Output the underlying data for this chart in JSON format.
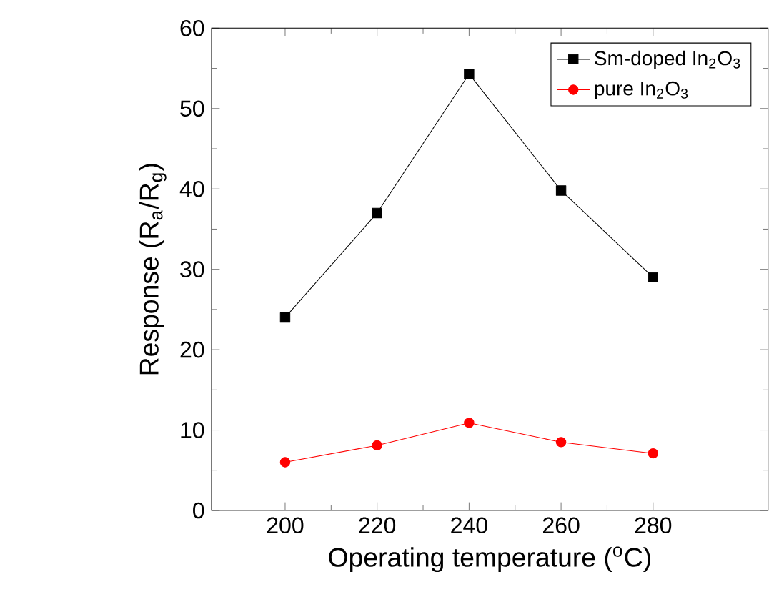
{
  "chart_data": {
    "type": "line",
    "xlabel": "Operating temperature ($^{o}$C)",
    "ylabel": "Response (R$_{a}$/R$_{g}$)",
    "x": [
      200,
      220,
      240,
      260,
      280
    ],
    "series": [
      {
        "name": "Sm-doped In$_{2}$O$_{3}$",
        "color": "#000000",
        "marker": "square",
        "values": [
          24,
          37,
          54.3,
          39.8,
          29
        ]
      },
      {
        "name": "pure In$_{2}$O$_{3}$",
        "color": "#ff0000",
        "marker": "circle",
        "values": [
          6,
          8.1,
          10.9,
          8.5,
          7.1
        ]
      }
    ],
    "xlim": [
      184,
      305
    ],
    "ylim": [
      0,
      60
    ],
    "xticks": [
      200,
      220,
      240,
      260,
      280
    ],
    "yticks": [
      0,
      10,
      20,
      30,
      40,
      50,
      60
    ],
    "grid": false,
    "legend": "top right",
    "line_style": "solid"
  }
}
